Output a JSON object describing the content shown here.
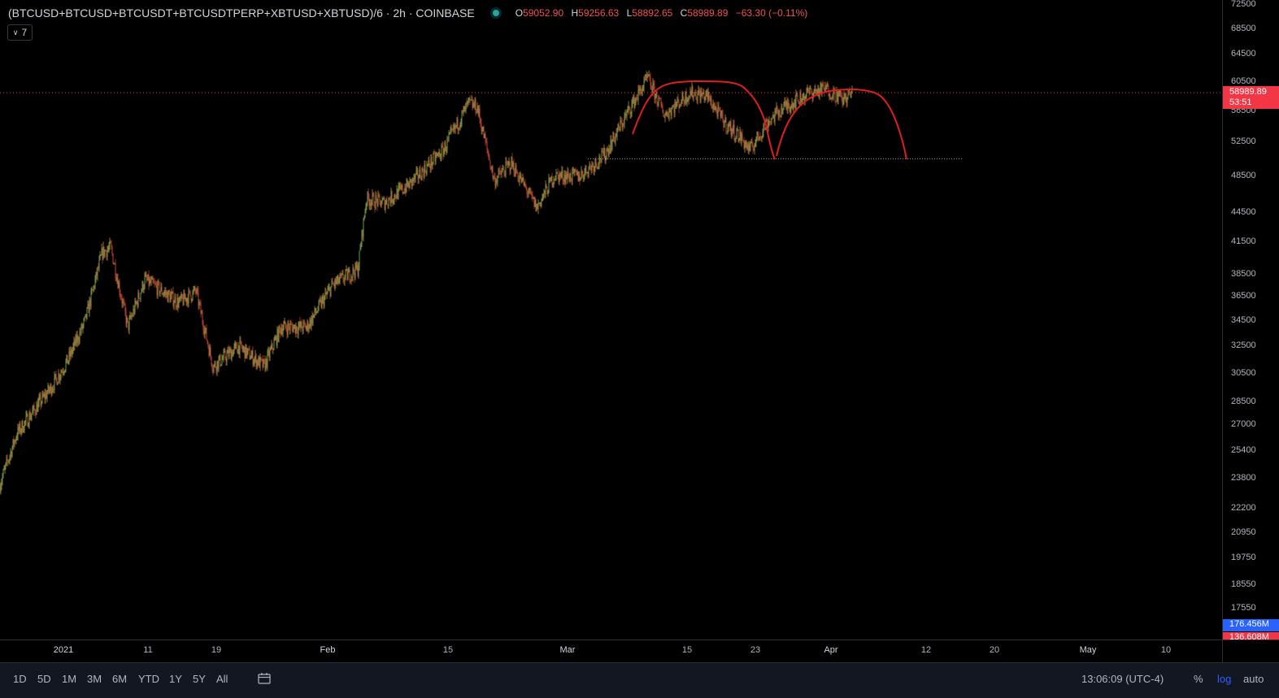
{
  "legend": {
    "symbol": "(BTCUSD+BTCUSD+BTCUSDT+BTCUSDTPERP+XBTUSD+XBTUSD)/6 · 2h · COINBASE",
    "o_label": "O",
    "o_value": "59052.90",
    "h_label": "H",
    "h_value": "59256.63",
    "l_label": "L",
    "l_value": "58892.65",
    "c_label": "C",
    "c_value": "58989.89",
    "change": "−63.30 (−0.11%)",
    "collapse_count": "7",
    "status_color": "#26a69a"
  },
  "price_axis": {
    "ticks": [
      "72500",
      "68500",
      "64500",
      "60500",
      "56500",
      "52500",
      "48500",
      "44500",
      "41500",
      "38500",
      "36500",
      "34500",
      "32500",
      "30500",
      "28500",
      "27000",
      "25400",
      "23800",
      "22200",
      "20950",
      "19750",
      "18550",
      "17550"
    ],
    "last_price": "58989.89",
    "countdown": "53:51",
    "volume_badge_1": "176.456M",
    "volume_badge_2": "136.608M",
    "last_price_color": "#f23645",
    "volume_color_1": "#2962ff",
    "volume_color_2": "#f23645"
  },
  "time_axis": {
    "labels": [
      "2021",
      "11",
      "19",
      "Feb",
      "15",
      "Mar",
      "15",
      "23",
      "Apr",
      "12",
      "20",
      "May",
      "10"
    ]
  },
  "toolbar": {
    "ranges": [
      "1D",
      "5D",
      "1M",
      "3M",
      "6M",
      "YTD",
      "1Y",
      "5Y",
      "All"
    ],
    "clock": "13:06:09 (UTC-4)",
    "percent": "%",
    "log": "log",
    "auto": "auto"
  },
  "chart_data": {
    "type": "candlestick",
    "interval": "2h",
    "scale": "log",
    "x_start": "2020-12-27",
    "y_range": [
      17000,
      74000
    ],
    "grid": false,
    "close_path": [
      [
        "2020-12-27",
        23500
      ],
      [
        "2020-12-29",
        26500
      ],
      [
        "2021-01-02",
        29500
      ],
      [
        "2021-01-04",
        31500
      ],
      [
        "2021-01-06",
        34500
      ],
      [
        "2021-01-08",
        40500
      ],
      [
        "2021-01-09",
        41000
      ],
      [
        "2021-01-11",
        34000
      ],
      [
        "2021-01-13",
        38000
      ],
      [
        "2021-01-15",
        37000
      ],
      [
        "2021-01-17",
        36000
      ],
      [
        "2021-01-19",
        37000
      ],
      [
        "2021-01-21",
        31000
      ],
      [
        "2021-01-24",
        32500
      ],
      [
        "2021-01-27",
        31000
      ],
      [
        "2021-01-29",
        34000
      ],
      [
        "2021-02-01",
        34000
      ],
      [
        "2021-02-04",
        37500
      ],
      [
        "2021-02-07",
        39000
      ],
      [
        "2021-02-08",
        46000
      ],
      [
        "2021-02-10",
        45500
      ],
      [
        "2021-02-13",
        47500
      ],
      [
        "2021-02-17",
        51500
      ],
      [
        "2021-02-20",
        57500
      ],
      [
        "2021-02-21",
        57000
      ],
      [
        "2021-02-23",
        48000
      ],
      [
        "2021-02-25",
        50000
      ],
      [
        "2021-02-28",
        45000
      ],
      [
        "2021-03-02",
        48500
      ],
      [
        "2021-03-05",
        48500
      ],
      [
        "2021-03-08",
        51000
      ],
      [
        "2021-03-11",
        57000
      ],
      [
        "2021-03-13",
        61000
      ],
      [
        "2021-03-15",
        56000
      ],
      [
        "2021-03-18",
        59000
      ],
      [
        "2021-03-20",
        58500
      ],
      [
        "2021-03-22",
        55000
      ],
      [
        "2021-03-24",
        53000
      ],
      [
        "2021-03-25",
        51500
      ],
      [
        "2021-03-27",
        55000
      ],
      [
        "2021-03-29",
        57000
      ],
      [
        "2021-04-01",
        59000
      ],
      [
        "2021-04-03",
        59500
      ],
      [
        "2021-04-05",
        58000
      ],
      [
        "2021-04-06",
        59000
      ]
    ],
    "annotations": {
      "last_price_line": 58989.89,
      "support_line": {
        "price": 50500,
        "from": "2021-03-06",
        "to": "2021-04-19"
      },
      "arc_color": "#e01e1e"
    }
  }
}
